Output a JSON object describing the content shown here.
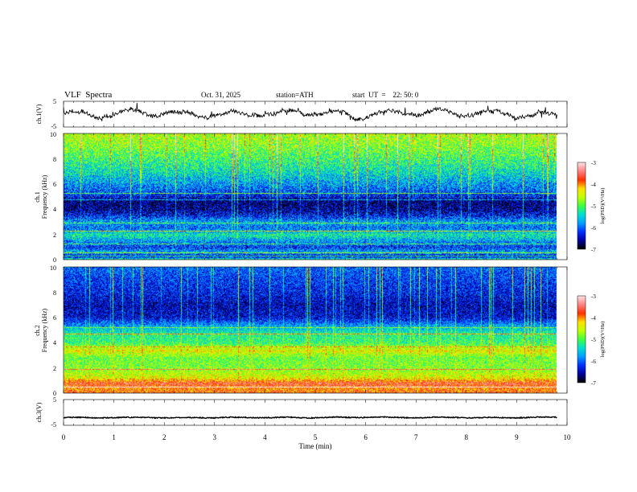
{
  "header": {
    "title": "VLF  Spectra",
    "date": "Oct. 31, 2025",
    "station": "station=ATH",
    "start": "start  UT  =    22: 50: 0"
  },
  "chart_data": [
    {
      "type": "line",
      "panel": "ch1-voltage",
      "title": "VLF Spectra",
      "ylabel": "ch.1(V)",
      "ylim": [
        -5,
        5
      ],
      "yticks": [
        "5",
        "-5"
      ],
      "xlim": [
        0,
        10
      ],
      "description_series": "noisy waveform centered near 0 V, amplitude roughly ±3 V",
      "series": [
        {
          "name": "ch.1",
          "mean": 0,
          "approx_amplitude": 3,
          "duration_min": 9.8
        }
      ]
    },
    {
      "type": "heatmap",
      "panel": "ch1-spectrogram",
      "ylabel": "ch.1\nFrequency (kHz)",
      "ylabel_line1": "ch.1",
      "ylabel_line2": "Frequency (kHz)",
      "ylim": [
        0,
        10
      ],
      "yticks": [
        "0",
        "2",
        "4",
        "6",
        "8",
        "10"
      ],
      "xlim": [
        0,
        10
      ],
      "colorbar": {
        "label": "log(PSD)(V²/Hz)",
        "range": [
          -7,
          -3
        ],
        "ticks": [
          "-3",
          "-4",
          "-5",
          "-6",
          "-7"
        ]
      },
      "band_profile_khz": [
        {
          "f": 0.0,
          "v": -5.0
        },
        {
          "f": 0.3,
          "v": -6.5
        },
        {
          "f": 0.6,
          "v": -5.6
        },
        {
          "f": 1.0,
          "v": -6.2
        },
        {
          "f": 1.5,
          "v": -5.8
        },
        {
          "f": 2.0,
          "v": -5.3
        },
        {
          "f": 2.5,
          "v": -6.0
        },
        {
          "f": 3.0,
          "v": -5.7
        },
        {
          "f": 3.5,
          "v": -6.3
        },
        {
          "f": 4.0,
          "v": -6.6
        },
        {
          "f": 4.6,
          "v": -6.7
        },
        {
          "f": 5.2,
          "v": -6.2
        },
        {
          "f": 6.0,
          "v": -5.8
        },
        {
          "f": 7.0,
          "v": -5.4
        },
        {
          "f": 8.0,
          "v": -5.1
        },
        {
          "f": 9.0,
          "v": -4.8
        },
        {
          "f": 10.0,
          "v": -4.6
        }
      ]
    },
    {
      "type": "heatmap",
      "panel": "ch2-spectrogram",
      "ylabel": "ch.2\nFrequency (kHz)",
      "ylabel_line1": "ch.2",
      "ylabel_line2": "Frequency (kHz)",
      "ylim": [
        0,
        10
      ],
      "yticks": [
        "0",
        "2",
        "4",
        "6",
        "8",
        "10"
      ],
      "xlim": [
        0,
        10
      ],
      "colorbar": {
        "label": "log(PSD)(V²/Hz)",
        "range": [
          -7,
          -3
        ],
        "ticks": [
          "-3",
          "-4",
          "-5",
          "-6",
          "-7"
        ]
      },
      "band_profile_khz": [
        {
          "f": 0.0,
          "v": -3.8
        },
        {
          "f": 0.4,
          "v": -4.0
        },
        {
          "f": 0.8,
          "v": -3.6
        },
        {
          "f": 1.2,
          "v": -4.4
        },
        {
          "f": 2.0,
          "v": -4.8
        },
        {
          "f": 2.8,
          "v": -4.9
        },
        {
          "f": 3.4,
          "v": -4.4
        },
        {
          "f": 4.0,
          "v": -5.1
        },
        {
          "f": 4.6,
          "v": -5.2
        },
        {
          "f": 5.2,
          "v": -5.6
        },
        {
          "f": 6.0,
          "v": -6.4
        },
        {
          "f": 7.0,
          "v": -6.5
        },
        {
          "f": 8.0,
          "v": -6.3
        },
        {
          "f": 9.0,
          "v": -6.2
        },
        {
          "f": 10.0,
          "v": -6.0
        }
      ]
    },
    {
      "type": "line",
      "panel": "ch3-voltage",
      "ylabel": "ch.3(V)",
      "ylim": [
        -5,
        5
      ],
      "yticks": [
        "5",
        "-5"
      ],
      "xlim": [
        0,
        10
      ],
      "xlabel": "Time  (min)",
      "xticks": [
        "0",
        "1",
        "2",
        "3",
        "4",
        "5",
        "6",
        "7",
        "8",
        "9",
        "10"
      ],
      "series": [
        {
          "name": "ch.3",
          "mean": -2,
          "approx_amplitude": 0.3,
          "duration_min": 9.8
        }
      ]
    }
  ],
  "colors": {
    "scale": [
      "#000000",
      "#0000a0",
      "#0030ff",
      "#00a0ff",
      "#00e0d0",
      "#40ff40",
      "#c0ff00",
      "#ffe000",
      "#ff3000",
      "#ff8080",
      "#ffe0e0"
    ]
  }
}
